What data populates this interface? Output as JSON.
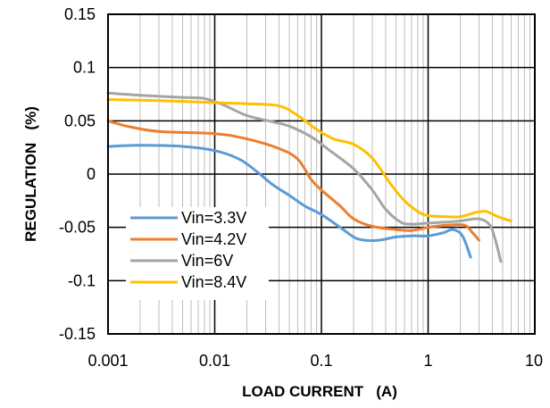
{
  "chart_data": {
    "type": "line",
    "xlabel": "LOAD CURRENT   (A)",
    "ylabel": "REGULATION   (%)",
    "x_scale": "log",
    "xlim": [
      0.001,
      10
    ],
    "ylim": [
      -0.15,
      0.15
    ],
    "x_ticks": [
      0.001,
      0.01,
      0.1,
      1,
      10
    ],
    "x_tick_labels": [
      "0.001",
      "0.01",
      "0.1",
      "1",
      "10"
    ],
    "y_ticks": [
      0.15,
      0.1,
      0.05,
      0,
      -0.05,
      -0.1,
      -0.15
    ],
    "y_tick_labels": [
      "0.15",
      "0.1",
      "0.05",
      "0",
      "-0.05",
      "-0.1",
      "-0.15"
    ],
    "grid": true,
    "legend_position": "lower-left",
    "series": [
      {
        "name": "Vin=3.3V",
        "color": "#5b9bd5",
        "points": [
          [
            0.001,
            0.026
          ],
          [
            0.002,
            0.027
          ],
          [
            0.005,
            0.026
          ],
          [
            0.01,
            0.022
          ],
          [
            0.017,
            0.014
          ],
          [
            0.025,
            0.002
          ],
          [
            0.035,
            -0.01
          ],
          [
            0.05,
            -0.02
          ],
          [
            0.07,
            -0.03
          ],
          [
            0.1,
            -0.038
          ],
          [
            0.15,
            -0.05
          ],
          [
            0.2,
            -0.059
          ],
          [
            0.25,
            -0.062
          ],
          [
            0.35,
            -0.062
          ],
          [
            0.5,
            -0.059
          ],
          [
            0.7,
            -0.058
          ],
          [
            1.0,
            -0.058
          ],
          [
            1.4,
            -0.055
          ],
          [
            1.7,
            -0.052
          ],
          [
            2.1,
            -0.058
          ],
          [
            2.5,
            -0.078
          ]
        ]
      },
      {
        "name": "Vin=4.2V",
        "color": "#ed7d31",
        "points": [
          [
            0.001,
            0.05
          ],
          [
            0.0015,
            0.045
          ],
          [
            0.003,
            0.04
          ],
          [
            0.01,
            0.038
          ],
          [
            0.02,
            0.033
          ],
          [
            0.04,
            0.024
          ],
          [
            0.06,
            0.014
          ],
          [
            0.08,
            -0.005
          ],
          [
            0.1,
            -0.015
          ],
          [
            0.15,
            -0.03
          ],
          [
            0.2,
            -0.042
          ],
          [
            0.3,
            -0.049
          ],
          [
            0.5,
            -0.052
          ],
          [
            0.7,
            -0.053
          ],
          [
            1.0,
            -0.05
          ],
          [
            1.5,
            -0.048
          ],
          [
            2.2,
            -0.048
          ],
          [
            2.6,
            -0.055
          ],
          [
            3.0,
            -0.062
          ]
        ]
      },
      {
        "name": "Vin=6V",
        "color": "#a5a5a5",
        "points": [
          [
            0.001,
            0.076
          ],
          [
            0.002,
            0.074
          ],
          [
            0.005,
            0.072
          ],
          [
            0.008,
            0.071
          ],
          [
            0.012,
            0.065
          ],
          [
            0.02,
            0.055
          ],
          [
            0.035,
            0.049
          ],
          [
            0.05,
            0.045
          ],
          [
            0.08,
            0.035
          ],
          [
            0.12,
            0.022
          ],
          [
            0.2,
            0.005
          ],
          [
            0.3,
            -0.015
          ],
          [
            0.4,
            -0.033
          ],
          [
            0.55,
            -0.045
          ],
          [
            0.7,
            -0.047
          ],
          [
            1.0,
            -0.046
          ],
          [
            1.5,
            -0.045
          ],
          [
            2.0,
            -0.044
          ],
          [
            3.0,
            -0.042
          ],
          [
            3.8,
            -0.048
          ],
          [
            4.3,
            -0.063
          ],
          [
            4.8,
            -0.082
          ]
        ]
      },
      {
        "name": "Vin=8.4V",
        "color": "#ffc000",
        "points": [
          [
            0.001,
            0.07
          ],
          [
            0.003,
            0.069
          ],
          [
            0.006,
            0.068
          ],
          [
            0.01,
            0.067
          ],
          [
            0.02,
            0.066
          ],
          [
            0.04,
            0.064
          ],
          [
            0.06,
            0.055
          ],
          [
            0.09,
            0.042
          ],
          [
            0.13,
            0.033
          ],
          [
            0.2,
            0.028
          ],
          [
            0.3,
            0.015
          ],
          [
            0.45,
            -0.01
          ],
          [
            0.6,
            -0.025
          ],
          [
            0.8,
            -0.035
          ],
          [
            1.0,
            -0.039
          ],
          [
            1.5,
            -0.04
          ],
          [
            2.0,
            -0.04
          ],
          [
            2.8,
            -0.036
          ],
          [
            3.5,
            -0.035
          ],
          [
            4.5,
            -0.04
          ],
          [
            6.0,
            -0.044
          ]
        ]
      }
    ]
  }
}
